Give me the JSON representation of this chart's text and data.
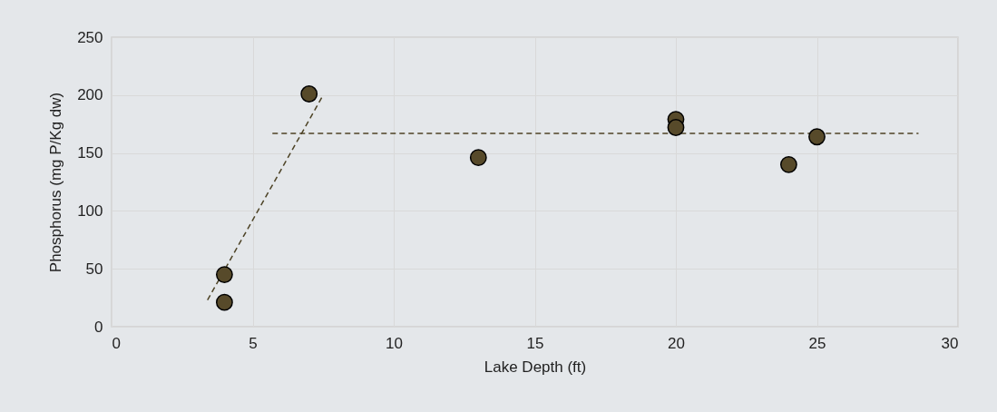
{
  "chart_data": {
    "type": "scatter",
    "xlabel": "Lake Depth (ft)",
    "ylabel": "Phosphorus (mg P/Kg dw)",
    "xlim": [
      0,
      30
    ],
    "xticks": [
      0,
      5,
      10,
      15,
      20,
      25,
      30
    ],
    "ylim": [
      0,
      250
    ],
    "yticks": [
      0,
      50,
      100,
      150,
      200,
      250
    ],
    "grid": true,
    "series": [
      {
        "color": "#574a2a",
        "marker": "circle",
        "x": [
          4,
          4,
          7,
          13,
          20,
          20,
          24,
          25
        ],
        "values": [
          45,
          21,
          201,
          146,
          179,
          172,
          140,
          164
        ]
      },
      {
        "type": "line",
        "color": "#4d4326",
        "line_style": "dashed",
        "x": [
          3.4,
          7.5
        ],
        "values": [
          23,
          200
        ]
      },
      {
        "type": "line",
        "color": "#4d4326",
        "line_style": "dashed",
        "x": [
          5.7,
          28.6
        ],
        "values": [
          167,
          167
        ]
      }
    ]
  }
}
